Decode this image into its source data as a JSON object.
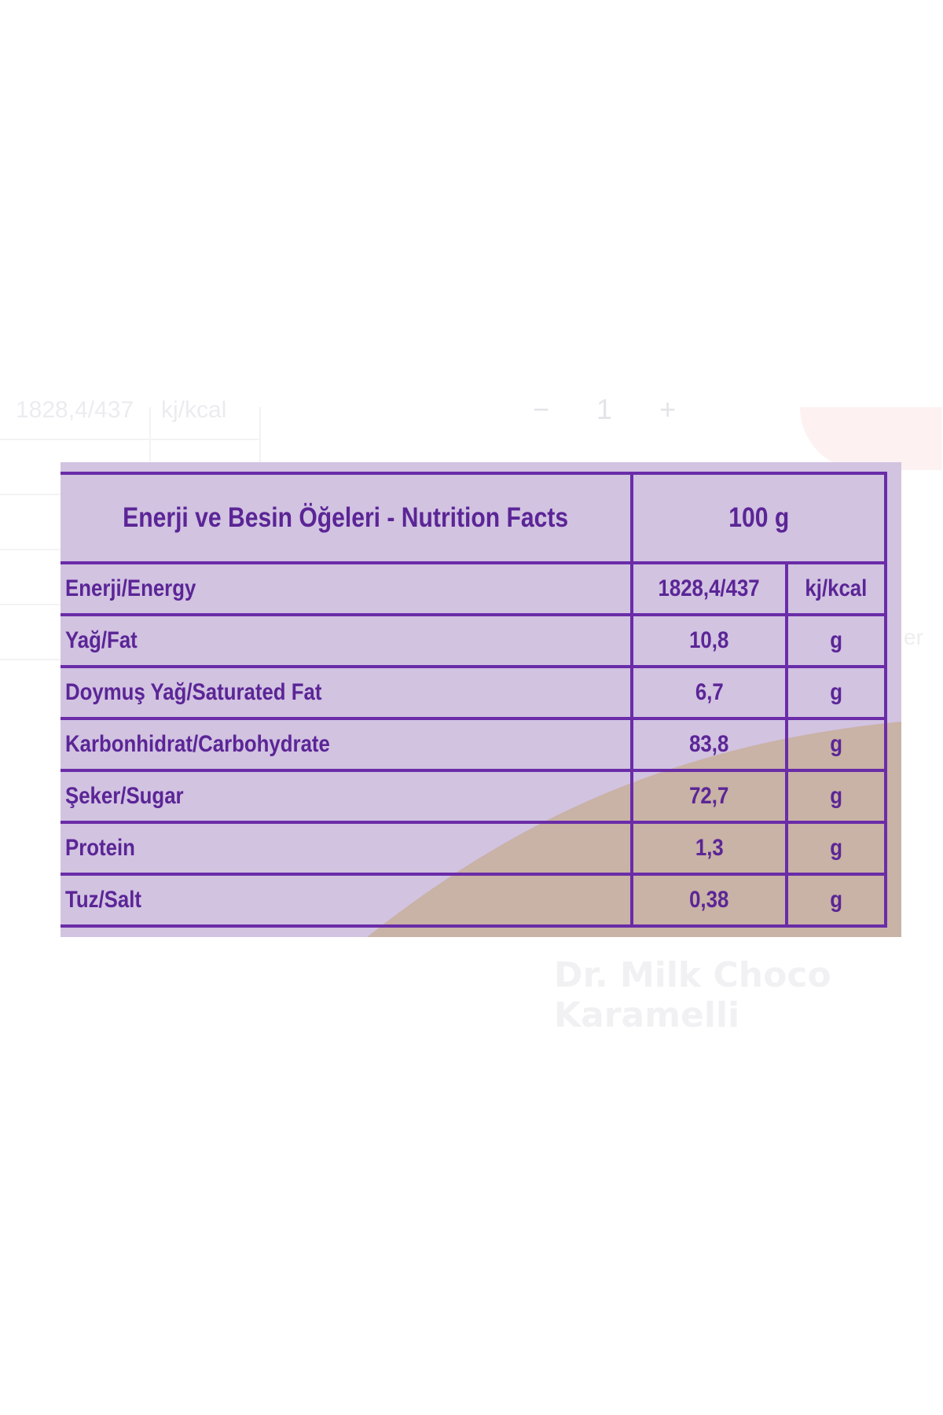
{
  "nutrition_table": {
    "title": "Enerji ve Besin Öğeleri - Nutrition Facts",
    "amount_header": "100 g",
    "rows": [
      {
        "name": "Enerji/Energy",
        "value": "1828,4/437",
        "unit": "kj/kcal"
      },
      {
        "name": "Yağ/Fat",
        "value": "10,8",
        "unit": "g"
      },
      {
        "name": "Doymuş Yağ/Saturated Fat",
        "value": "6,7",
        "unit": "g"
      },
      {
        "name": "Karbonhidrat/Carbohydrate",
        "value": "83,8",
        "unit": "g"
      },
      {
        "name": "Şeker/Sugar",
        "value": "72,7",
        "unit": "g"
      },
      {
        "name": "Protein",
        "value": "1,3",
        "unit": "g"
      },
      {
        "name": "Tuz/Salt",
        "value": "0,38",
        "unit": "g"
      }
    ]
  },
  "background": {
    "faded_energy_cell": "1828,4/437",
    "faded_unit_cell": "kj/kcal",
    "faded_stepper": [
      "−",
      "1",
      "+"
    ],
    "faded_text_fragment": "er",
    "faded_product_title": "Dr. Milk Choco Karamelli"
  },
  "colors": {
    "panel_bg": "#d2c3e1",
    "border": "#6a2ca8",
    "text": "#5b2596",
    "caramel": "#c9b2a6"
  }
}
